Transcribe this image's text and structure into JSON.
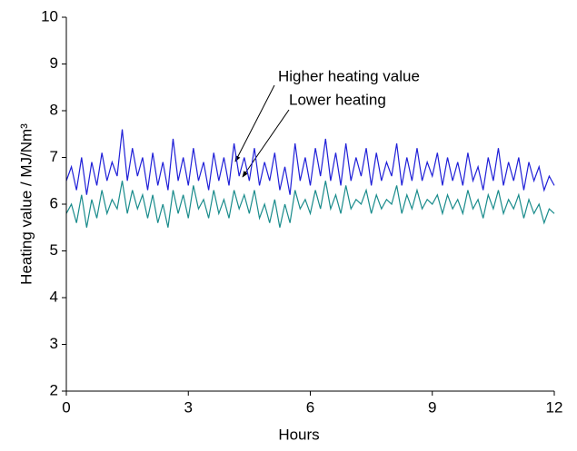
{
  "chart_data": {
    "type": "line",
    "xlabel": "Hours",
    "ylabel": "Heating value / MJ/Nm³",
    "annotations": [
      "Higher heating value",
      "Lower heating"
    ],
    "x": [
      0,
      0.125,
      0.25,
      0.375,
      0.5,
      0.625,
      0.75,
      0.875,
      1,
      1.125,
      1.25,
      1.375,
      1.5,
      1.625,
      1.75,
      1.875,
      2,
      2.125,
      2.25,
      2.375,
      2.5,
      2.625,
      2.75,
      2.875,
      3,
      3.125,
      3.25,
      3.375,
      3.5,
      3.625,
      3.75,
      3.875,
      4,
      4.125,
      4.25,
      4.375,
      4.5,
      4.625,
      4.75,
      4.875,
      5,
      5.125,
      5.25,
      5.375,
      5.5,
      5.625,
      5.75,
      5.875,
      6,
      6.125,
      6.25,
      6.375,
      6.5,
      6.625,
      6.75,
      6.875,
      7,
      7.125,
      7.25,
      7.375,
      7.5,
      7.625,
      7.75,
      7.875,
      8,
      8.125,
      8.25,
      8.375,
      8.5,
      8.625,
      8.75,
      8.875,
      9,
      9.125,
      9.25,
      9.375,
      9.5,
      9.625,
      9.75,
      9.875,
      10,
      10.125,
      10.25,
      10.375,
      10.5,
      10.625,
      10.75,
      10.875,
      11,
      11.125,
      11.25,
      11.375,
      11.5,
      11.625,
      11.75,
      11.875,
      12
    ],
    "series": [
      {
        "name": "Higher heating value",
        "color": "#2020d8",
        "values": [
          6.5,
          6.8,
          6.3,
          7.0,
          6.2,
          6.9,
          6.4,
          7.1,
          6.5,
          6.9,
          6.6,
          7.6,
          6.5,
          7.2,
          6.6,
          7.0,
          6.3,
          7.1,
          6.4,
          6.9,
          6.3,
          7.4,
          6.5,
          7.0,
          6.4,
          7.2,
          6.5,
          6.9,
          6.3,
          7.1,
          6.5,
          7.0,
          6.4,
          7.3,
          6.6,
          7.0,
          6.5,
          7.2,
          6.4,
          6.9,
          6.5,
          7.1,
          6.3,
          6.8,
          6.2,
          7.3,
          6.5,
          7.0,
          6.4,
          7.2,
          6.6,
          7.4,
          6.5,
          7.1,
          6.4,
          7.3,
          6.5,
          7.0,
          6.6,
          7.2,
          6.4,
          7.1,
          6.5,
          6.9,
          6.6,
          7.3,
          6.4,
          7.0,
          6.5,
          7.2,
          6.5,
          6.9,
          6.6,
          7.1,
          6.4,
          7.0,
          6.5,
          6.9,
          6.4,
          7.1,
          6.5,
          6.8,
          6.3,
          7.0,
          6.5,
          7.2,
          6.4,
          6.9,
          6.5,
          7.0,
          6.3,
          6.9,
          6.5,
          6.8,
          6.3,
          6.6,
          6.4
        ]
      },
      {
        "name": "Lower heating",
        "color": "#1a8c8c",
        "values": [
          5.8,
          6.0,
          5.6,
          6.2,
          5.5,
          6.1,
          5.7,
          6.3,
          5.8,
          6.1,
          5.9,
          6.5,
          5.8,
          6.3,
          5.9,
          6.2,
          5.7,
          6.2,
          5.6,
          6.0,
          5.5,
          6.3,
          5.8,
          6.2,
          5.7,
          6.4,
          5.9,
          6.1,
          5.7,
          6.3,
          5.8,
          6.1,
          5.7,
          6.3,
          5.9,
          6.2,
          5.8,
          6.3,
          5.7,
          6.0,
          5.6,
          6.1,
          5.5,
          6.0,
          5.6,
          6.3,
          5.9,
          6.1,
          5.8,
          6.3,
          5.9,
          6.5,
          5.9,
          6.2,
          5.8,
          6.4,
          5.9,
          6.1,
          6.0,
          6.3,
          5.8,
          6.2,
          5.9,
          6.1,
          6.0,
          6.4,
          5.8,
          6.2,
          5.9,
          6.3,
          5.9,
          6.1,
          6.0,
          6.2,
          5.8,
          6.2,
          5.9,
          6.1,
          5.8,
          6.3,
          5.9,
          6.1,
          5.7,
          6.2,
          5.9,
          6.3,
          5.8,
          6.1,
          5.9,
          6.2,
          5.7,
          6.1,
          5.8,
          6.0,
          5.6,
          5.9,
          5.8
        ]
      }
    ],
    "xlim": [
      0,
      12
    ],
    "xticks": [
      0,
      3,
      6,
      9,
      12
    ],
    "ylim": [
      2,
      10
    ],
    "yticks": [
      2,
      3,
      4,
      5,
      6,
      7,
      8,
      9,
      10
    ]
  }
}
